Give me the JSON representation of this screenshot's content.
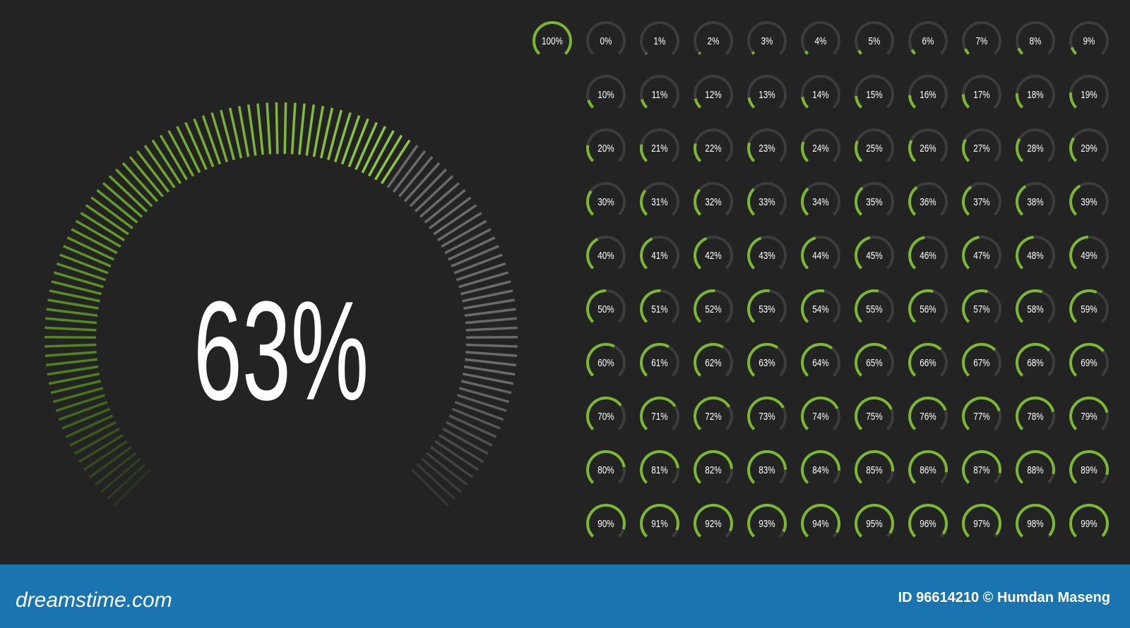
{
  "main_gauge": {
    "label": "63%",
    "value": 63
  },
  "gauges": [
    {
      "label": "100%",
      "value": 100
    },
    {
      "label": "0%",
      "value": 0
    },
    {
      "label": "1%",
      "value": 1
    },
    {
      "label": "2%",
      "value": 2
    },
    {
      "label": "3%",
      "value": 3
    },
    {
      "label": "4%",
      "value": 4
    },
    {
      "label": "5%",
      "value": 5
    },
    {
      "label": "6%",
      "value": 6
    },
    {
      "label": "7%",
      "value": 7
    },
    {
      "label": "8%",
      "value": 8
    },
    {
      "label": "9%",
      "value": 9
    },
    {
      "label": "10%",
      "value": 10
    },
    {
      "label": "11%",
      "value": 11
    },
    {
      "label": "12%",
      "value": 12
    },
    {
      "label": "13%",
      "value": 13
    },
    {
      "label": "14%",
      "value": 14
    },
    {
      "label": "15%",
      "value": 15
    },
    {
      "label": "16%",
      "value": 16
    },
    {
      "label": "17%",
      "value": 17
    },
    {
      "label": "18%",
      "value": 18
    },
    {
      "label": "19%",
      "value": 19
    },
    {
      "label": "20%",
      "value": 20
    },
    {
      "label": "21%",
      "value": 21
    },
    {
      "label": "22%",
      "value": 22
    },
    {
      "label": "23%",
      "value": 23
    },
    {
      "label": "24%",
      "value": 24
    },
    {
      "label": "25%",
      "value": 25
    },
    {
      "label": "26%",
      "value": 26
    },
    {
      "label": "27%",
      "value": 27
    },
    {
      "label": "28%",
      "value": 28
    },
    {
      "label": "29%",
      "value": 29
    },
    {
      "label": "30%",
      "value": 30
    },
    {
      "label": "31%",
      "value": 31
    },
    {
      "label": "32%",
      "value": 32
    },
    {
      "label": "33%",
      "value": 33
    },
    {
      "label": "34%",
      "value": 34
    },
    {
      "label": "35%",
      "value": 35
    },
    {
      "label": "36%",
      "value": 36
    },
    {
      "label": "37%",
      "value": 37
    },
    {
      "label": "38%",
      "value": 38
    },
    {
      "label": "39%",
      "value": 39
    },
    {
      "label": "40%",
      "value": 40
    },
    {
      "label": "41%",
      "value": 41
    },
    {
      "label": "42%",
      "value": 42
    },
    {
      "label": "43%",
      "value": 43
    },
    {
      "label": "44%",
      "value": 44
    },
    {
      "label": "45%",
      "value": 45
    },
    {
      "label": "46%",
      "value": 46
    },
    {
      "label": "47%",
      "value": 47
    },
    {
      "label": "48%",
      "value": 48
    },
    {
      "label": "49%",
      "value": 49
    },
    {
      "label": "50%",
      "value": 50
    },
    {
      "label": "51%",
      "value": 51
    },
    {
      "label": "52%",
      "value": 52
    },
    {
      "label": "53%",
      "value": 53
    },
    {
      "label": "54%",
      "value": 54
    },
    {
      "label": "55%",
      "value": 55
    },
    {
      "label": "56%",
      "value": 56
    },
    {
      "label": "57%",
      "value": 57
    },
    {
      "label": "58%",
      "value": 58
    },
    {
      "label": "59%",
      "value": 59
    },
    {
      "label": "60%",
      "value": 60
    },
    {
      "label": "61%",
      "value": 61
    },
    {
      "label": "62%",
      "value": 62
    },
    {
      "label": "63%",
      "value": 63
    },
    {
      "label": "64%",
      "value": 64
    },
    {
      "label": "65%",
      "value": 65
    },
    {
      "label": "66%",
      "value": 66
    },
    {
      "label": "67%",
      "value": 67
    },
    {
      "label": "68%",
      "value": 68
    },
    {
      "label": "69%",
      "value": 69
    },
    {
      "label": "70%",
      "value": 70
    },
    {
      "label": "71%",
      "value": 71
    },
    {
      "label": "72%",
      "value": 72
    },
    {
      "label": "73%",
      "value": 73
    },
    {
      "label": "74%",
      "value": 74
    },
    {
      "label": "75%",
      "value": 75
    },
    {
      "label": "76%",
      "value": 76
    },
    {
      "label": "77%",
      "value": 77
    },
    {
      "label": "78%",
      "value": 78
    },
    {
      "label": "79%",
      "value": 79
    },
    {
      "label": "80%",
      "value": 80
    },
    {
      "label": "81%",
      "value": 81
    },
    {
      "label": "82%",
      "value": 82
    },
    {
      "label": "83%",
      "value": 83
    },
    {
      "label": "84%",
      "value": 84
    },
    {
      "label": "85%",
      "value": 85
    },
    {
      "label": "86%",
      "value": 86
    },
    {
      "label": "87%",
      "value": 87
    },
    {
      "label": "88%",
      "value": 88
    },
    {
      "label": "89%",
      "value": 89
    },
    {
      "label": "90%",
      "value": 90
    },
    {
      "label": "91%",
      "value": 91
    },
    {
      "label": "92%",
      "value": 92
    },
    {
      "label": "93%",
      "value": 93
    },
    {
      "label": "94%",
      "value": 94
    },
    {
      "label": "95%",
      "value": 95
    },
    {
      "label": "96%",
      "value": 96
    },
    {
      "label": "97%",
      "value": 97
    },
    {
      "label": "98%",
      "value": 98
    },
    {
      "label": "99%",
      "value": 99
    }
  ],
  "footer": {
    "brand": "dreamstime.com",
    "credit": "ID 96614210 © Humdan Maseng"
  }
}
